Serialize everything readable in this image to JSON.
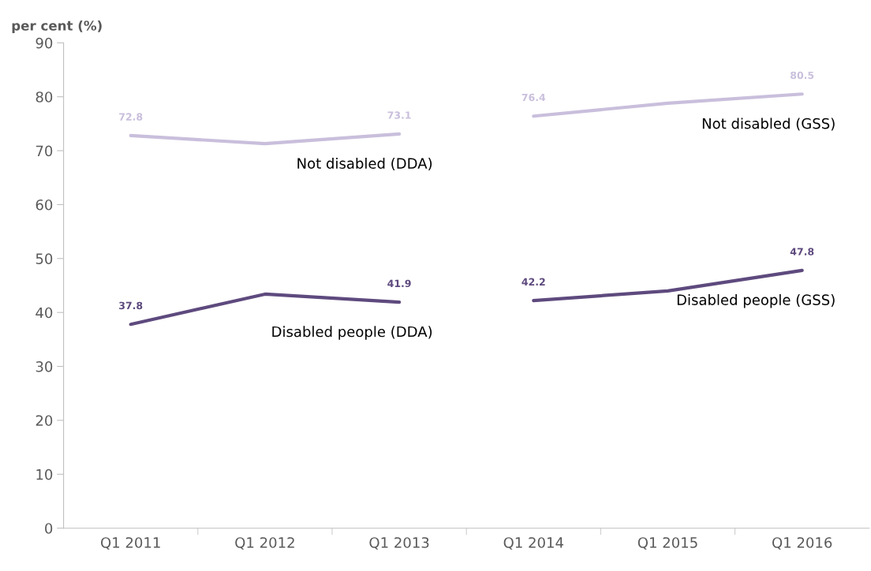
{
  "chart_data": {
    "type": "line",
    "ylabel": "per cent (%)",
    "categories": [
      "Q1 2011",
      "Q1 2012",
      "Q1 2013",
      "Q1 2014",
      "Q1 2015",
      "Q1 2016"
    ],
    "series": [
      {
        "name": "Not disabled (DDA)",
        "color": "#c9bfdc",
        "values": [
          72.8,
          71.3,
          73.1,
          null,
          null,
          null
        ],
        "value_labels": [
          "72.8",
          null,
          "73.1",
          null,
          null,
          null
        ]
      },
      {
        "name": "Not disabled (GSS)",
        "color": "#c9bfdc",
        "values": [
          null,
          null,
          null,
          76.4,
          78.8,
          80.5
        ],
        "value_labels": [
          null,
          null,
          null,
          "76.4",
          null,
          "80.5"
        ]
      },
      {
        "name": "Disabled people (DDA)",
        "color": "#5e4a7e",
        "values": [
          37.8,
          43.4,
          41.9,
          null,
          null,
          null
        ],
        "value_labels": [
          "37.8",
          null,
          "41.9",
          null,
          null,
          null
        ]
      },
      {
        "name": "Disabled people (GSS)",
        "color": "#5e4a7e",
        "values": [
          null,
          null,
          null,
          42.2,
          44.0,
          47.8
        ],
        "value_labels": [
          null,
          null,
          null,
          "42.2",
          null,
          "47.8"
        ]
      }
    ],
    "ylim": [
      0,
      90
    ],
    "yticks": [
      0,
      10,
      20,
      30,
      40,
      50,
      60,
      70,
      80,
      90
    ],
    "grid": false,
    "legend": false,
    "marker": "none",
    "line_style": "solid"
  }
}
